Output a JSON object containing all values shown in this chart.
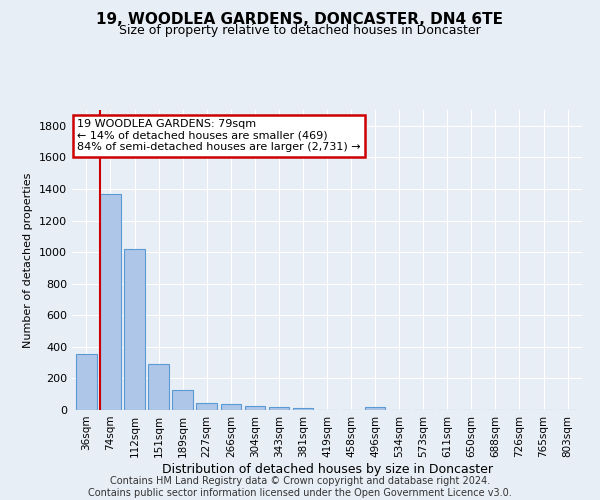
{
  "title": "19, WOODLEA GARDENS, DONCASTER, DN4 6TE",
  "subtitle": "Size of property relative to detached houses in Doncaster",
  "xlabel": "Distribution of detached houses by size in Doncaster",
  "ylabel": "Number of detached properties",
  "footer_line1": "Contains HM Land Registry data © Crown copyright and database right 2024.",
  "footer_line2": "Contains public sector information licensed under the Open Government Licence v3.0.",
  "categories": [
    "36sqm",
    "74sqm",
    "112sqm",
    "151sqm",
    "189sqm",
    "227sqm",
    "266sqm",
    "304sqm",
    "343sqm",
    "381sqm",
    "419sqm",
    "458sqm",
    "496sqm",
    "534sqm",
    "573sqm",
    "611sqm",
    "650sqm",
    "688sqm",
    "726sqm",
    "765sqm",
    "803sqm"
  ],
  "values": [
    355,
    1365,
    1020,
    290,
    128,
    43,
    35,
    25,
    18,
    15,
    0,
    0,
    18,
    0,
    0,
    0,
    0,
    0,
    0,
    0,
    0
  ],
  "bar_color": "#aec6e8",
  "bar_edge_color": "#5b9bd5",
  "vline_bin_index": 1,
  "annotation_text_line1": "19 WOODLEA GARDENS: 79sqm",
  "annotation_text_line2": "← 14% of detached houses are smaller (469)",
  "annotation_text_line3": "84% of semi-detached houses are larger (2,731) →",
  "annotation_box_facecolor": "#ffffff",
  "annotation_box_edgecolor": "#cc0000",
  "ylim": [
    0,
    1900
  ],
  "yticks": [
    0,
    200,
    400,
    600,
    800,
    1000,
    1200,
    1400,
    1600,
    1800
  ],
  "bg_color": "#e8eef5",
  "plot_bg_color": "#e8eef5",
  "grid_color": "#ffffff",
  "vline_color": "#cc0000",
  "title_fontsize": 11,
  "subtitle_fontsize": 9,
  "ylabel_fontsize": 8,
  "xlabel_fontsize": 9,
  "tick_fontsize": 8,
  "xtick_fontsize": 7.5,
  "footer_fontsize": 7
}
